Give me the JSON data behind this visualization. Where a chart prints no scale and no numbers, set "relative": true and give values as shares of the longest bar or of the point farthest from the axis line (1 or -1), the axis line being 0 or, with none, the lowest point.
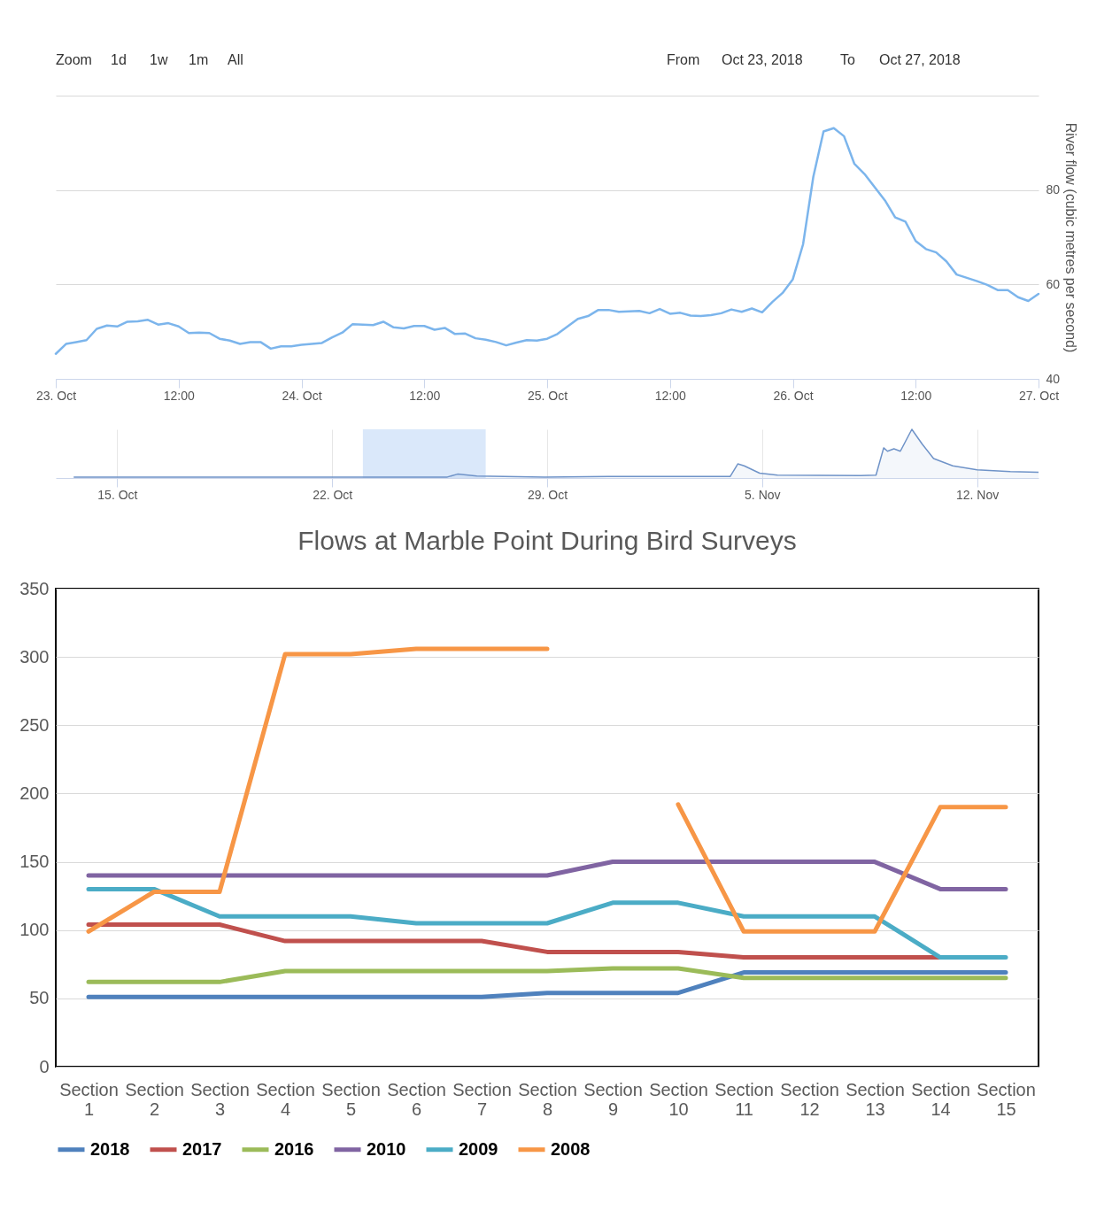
{
  "chart_data": [
    {
      "type": "line",
      "ylabel": "River flow (cubic metres per second)",
      "annotations": [
        "Zoom",
        "1d",
        "1w",
        "1m",
        "All",
        "From",
        "Oct 23, 2018",
        "To",
        "Oct 27, 2018"
      ],
      "x": [
        "2018-10-23T00:00",
        "2018-10-23T01:00",
        "2018-10-23T02:00",
        "2018-10-23T03:00",
        "2018-10-23T04:00",
        "2018-10-23T05:00",
        "2018-10-23T06:00",
        "2018-10-23T07:00",
        "2018-10-23T08:00",
        "2018-10-23T09:00",
        "2018-10-23T10:00",
        "2018-10-23T11:00",
        "2018-10-23T12:00",
        "2018-10-23T13:00",
        "2018-10-23T14:00",
        "2018-10-23T15:00",
        "2018-10-23T16:00",
        "2018-10-23T17:00",
        "2018-10-23T18:00",
        "2018-10-23T19:00",
        "2018-10-23T20:00",
        "2018-10-23T21:00",
        "2018-10-23T22:00",
        "2018-10-23T23:00",
        "2018-10-24T00:00",
        "2018-10-24T01:00",
        "2018-10-24T02:00",
        "2018-10-24T03:00",
        "2018-10-24T04:00",
        "2018-10-24T05:00",
        "2018-10-24T06:00",
        "2018-10-24T07:00",
        "2018-10-24T08:00",
        "2018-10-24T09:00",
        "2018-10-24T10:00",
        "2018-10-24T11:00",
        "2018-10-24T12:00",
        "2018-10-24T13:00",
        "2018-10-24T14:00",
        "2018-10-24T15:00",
        "2018-10-24T16:00",
        "2018-10-24T17:00",
        "2018-10-24T18:00",
        "2018-10-24T19:00",
        "2018-10-24T20:00",
        "2018-10-24T21:00",
        "2018-10-24T22:00",
        "2018-10-24T23:00",
        "2018-10-25T00:00",
        "2018-10-25T01:00",
        "2018-10-25T02:00",
        "2018-10-25T03:00",
        "2018-10-25T04:00",
        "2018-10-25T05:00",
        "2018-10-25T06:00",
        "2018-10-25T07:00",
        "2018-10-25T08:00",
        "2018-10-25T09:00",
        "2018-10-25T10:00",
        "2018-10-25T11:00",
        "2018-10-25T12:00",
        "2018-10-25T13:00",
        "2018-10-25T14:00",
        "2018-10-25T15:00",
        "2018-10-25T16:00",
        "2018-10-25T17:00",
        "2018-10-25T18:00",
        "2018-10-25T19:00",
        "2018-10-25T20:00",
        "2018-10-25T21:00",
        "2018-10-25T22:00",
        "2018-10-25T23:00",
        "2018-10-26T00:00",
        "2018-10-26T01:00",
        "2018-10-26T02:00",
        "2018-10-26T03:00",
        "2018-10-26T04:00",
        "2018-10-26T05:00",
        "2018-10-26T06:00",
        "2018-10-26T07:00",
        "2018-10-26T08:00",
        "2018-10-26T09:00",
        "2018-10-26T10:00",
        "2018-10-26T11:00",
        "2018-10-26T12:00",
        "2018-10-26T13:00",
        "2018-10-26T14:00",
        "2018-10-26T15:00",
        "2018-10-26T16:00",
        "2018-10-26T17:00",
        "2018-10-26T18:00",
        "2018-10-26T19:00",
        "2018-10-26T20:00",
        "2018-10-26T21:00",
        "2018-10-26T22:00",
        "2018-10-26T23:00",
        "2018-10-27T00:00"
      ],
      "series": [
        {
          "color": "#7cb5ec",
          "values": [
            45.3,
            47.4,
            47.8,
            48.2,
            50.6,
            51.3,
            51.1,
            52.1,
            52.2,
            52.5,
            51.5,
            51.8,
            51.1,
            49.7,
            49.8,
            49.7,
            48.5,
            48.1,
            47.4,
            47.8,
            47.8,
            46.4,
            46.9,
            46.9,
            47.2,
            47.4,
            47.6,
            48.8,
            49.8,
            51.6,
            51.5,
            51.4,
            52.1,
            50.9,
            50.7,
            51.2,
            51.2,
            50.4,
            50.8,
            49.5,
            49.6,
            48.6,
            48.3,
            47.8,
            47.1,
            47.7,
            48.2,
            48.1,
            48.5,
            49.5,
            51.1,
            52.7,
            53.3,
            54.6,
            54.6,
            54.2,
            54.3,
            54.4,
            53.9,
            54.8,
            53.8,
            54.0,
            53.4,
            53.3,
            53.5,
            53.9,
            54.7,
            54.2,
            54.9,
            54.1,
            56.3,
            58.2,
            61.1,
            68.5,
            82.8,
            92.4,
            93.1,
            91.4,
            85.6,
            83.4,
            80.6,
            77.8,
            74.2,
            73.3,
            69.2,
            67.5,
            66.8,
            64.9,
            62.1,
            61.4,
            60.7,
            59.9,
            58.8,
            58.8,
            57.3,
            56.5,
            58.0
          ]
        }
      ],
      "xlim": [
        "2018-10-23T00:00",
        "2018-10-27T00:00"
      ],
      "xticks": [
        {
          "value": "2018-10-23T00:00",
          "label": "23. Oct"
        },
        {
          "value": "2018-10-23T12:00",
          "label": "12:00"
        },
        {
          "value": "2018-10-24T00:00",
          "label": "24. Oct"
        },
        {
          "value": "2018-10-24T12:00",
          "label": "12:00"
        },
        {
          "value": "2018-10-25T00:00",
          "label": "25. Oct"
        },
        {
          "value": "2018-10-25T12:00",
          "label": "12:00"
        },
        {
          "value": "2018-10-26T00:00",
          "label": "26. Oct"
        },
        {
          "value": "2018-10-26T12:00",
          "label": "12:00"
        },
        {
          "value": "2018-10-27T00:00",
          "label": "27. Oct"
        }
      ],
      "ylim": [
        40,
        100
      ],
      "yticks": [
        40,
        60,
        80,
        {
          "value": 100,
          "label": null
        }
      ],
      "grid": "y",
      "legend": false
    },
    {
      "type": "area",
      "relative": true,
      "x": [
        "2018-10-13T14:00",
        "2018-10-22T00:00",
        "2018-10-25T18:00",
        "2018-10-26T02:00",
        "2018-10-26T17:00",
        "2018-10-28T22:00",
        "2018-10-31T00:00",
        "2018-11-03T23:00",
        "2018-11-04T05:00",
        "2018-11-04T10:00",
        "2018-11-04T22:00",
        "2018-11-05T12:00",
        "2018-11-08T05:00",
        "2018-11-08T17:00",
        "2018-11-08T23:00",
        "2018-11-09T02:00",
        "2018-11-09T07:00",
        "2018-11-09T12:00",
        "2018-11-09T21:00",
        "2018-11-10T05:00",
        "2018-11-10T14:00",
        "2018-11-11T05:00",
        "2018-11-12T00:00",
        "2018-11-13T02:00",
        "2018-11-14T00:00"
      ],
      "series": [
        {
          "color": "#6f93c8",
          "values": [
            0.02,
            0.02,
            0.02,
            0.08,
            0.04,
            0.02,
            0.03,
            0.03,
            0.29,
            0.25,
            0.1,
            0.06,
            0.05,
            0.06,
            0.62,
            0.55,
            0.6,
            0.55,
            1.0,
            0.7,
            0.4,
            0.25,
            0.17,
            0.13,
            0.12
          ]
        }
      ],
      "xlim": [
        "2018-10-13T00:00",
        "2018-11-14T00:00"
      ],
      "xticks": [
        {
          "value": "2018-10-15T00:00",
          "label": "15. Oct"
        },
        {
          "value": "2018-10-22T00:00",
          "label": "22. Oct"
        },
        {
          "value": "2018-10-29T00:00",
          "label": "29. Oct"
        },
        {
          "value": "2018-11-05T00:00",
          "label": "5. Nov"
        },
        {
          "value": "2018-11-12T00:00",
          "label": "12. Nov"
        }
      ],
      "bands": [
        {
          "axis": "x",
          "from": "2018-10-23T00:00",
          "to": "2018-10-27T00:00",
          "color": "#d6e6f9"
        }
      ],
      "grid": "x",
      "legend": false
    },
    {
      "type": "line",
      "title": "Flows at Marble Point During Bird Surveys",
      "categories": [
        "Section 1",
        "Section 2",
        "Section 3",
        "Section 4",
        "Section 5",
        "Section 6",
        "Section 7",
        "Section 8",
        "Section 9",
        "Section 10",
        "Section 11",
        "Section 12",
        "Section 13",
        "Section 14",
        "Section 15"
      ],
      "series": [
        {
          "name": "2018",
          "color": "#4f81bd",
          "values": [
            51,
            51,
            51,
            51,
            51,
            51,
            51,
            54,
            54,
            54,
            69,
            69,
            69,
            69,
            69
          ]
        },
        {
          "name": "2017",
          "color": "#c0504d",
          "values": [
            104,
            104,
            104,
            92,
            92,
            92,
            92,
            84,
            84,
            84,
            80,
            80,
            80,
            80,
            null
          ]
        },
        {
          "name": "2016",
          "color": "#9bbb59",
          "values": [
            62,
            62,
            62,
            70,
            70,
            70,
            70,
            70,
            72,
            72,
            65,
            65,
            65,
            65,
            65
          ]
        },
        {
          "name": "2010",
          "color": "#8064a2",
          "values": [
            140,
            140,
            140,
            140,
            140,
            140,
            140,
            140,
            150,
            150,
            150,
            150,
            150,
            130,
            130
          ]
        },
        {
          "name": "2009",
          "color": "#4bacc6",
          "values": [
            130,
            130,
            110,
            110,
            110,
            105,
            105,
            105,
            120,
            120,
            110,
            110,
            110,
            80,
            80
          ]
        },
        {
          "name": "2008",
          "color": "#f79646",
          "values": [
            99,
            128,
            128,
            302,
            302,
            306,
            306,
            306,
            null,
            192,
            99,
            99,
            99,
            190,
            190
          ]
        }
      ],
      "ylim": [
        0,
        350
      ],
      "yticks": [
        0,
        50,
        100,
        150,
        200,
        250,
        300,
        350
      ],
      "grid": "y",
      "legend": "bottom"
    }
  ]
}
